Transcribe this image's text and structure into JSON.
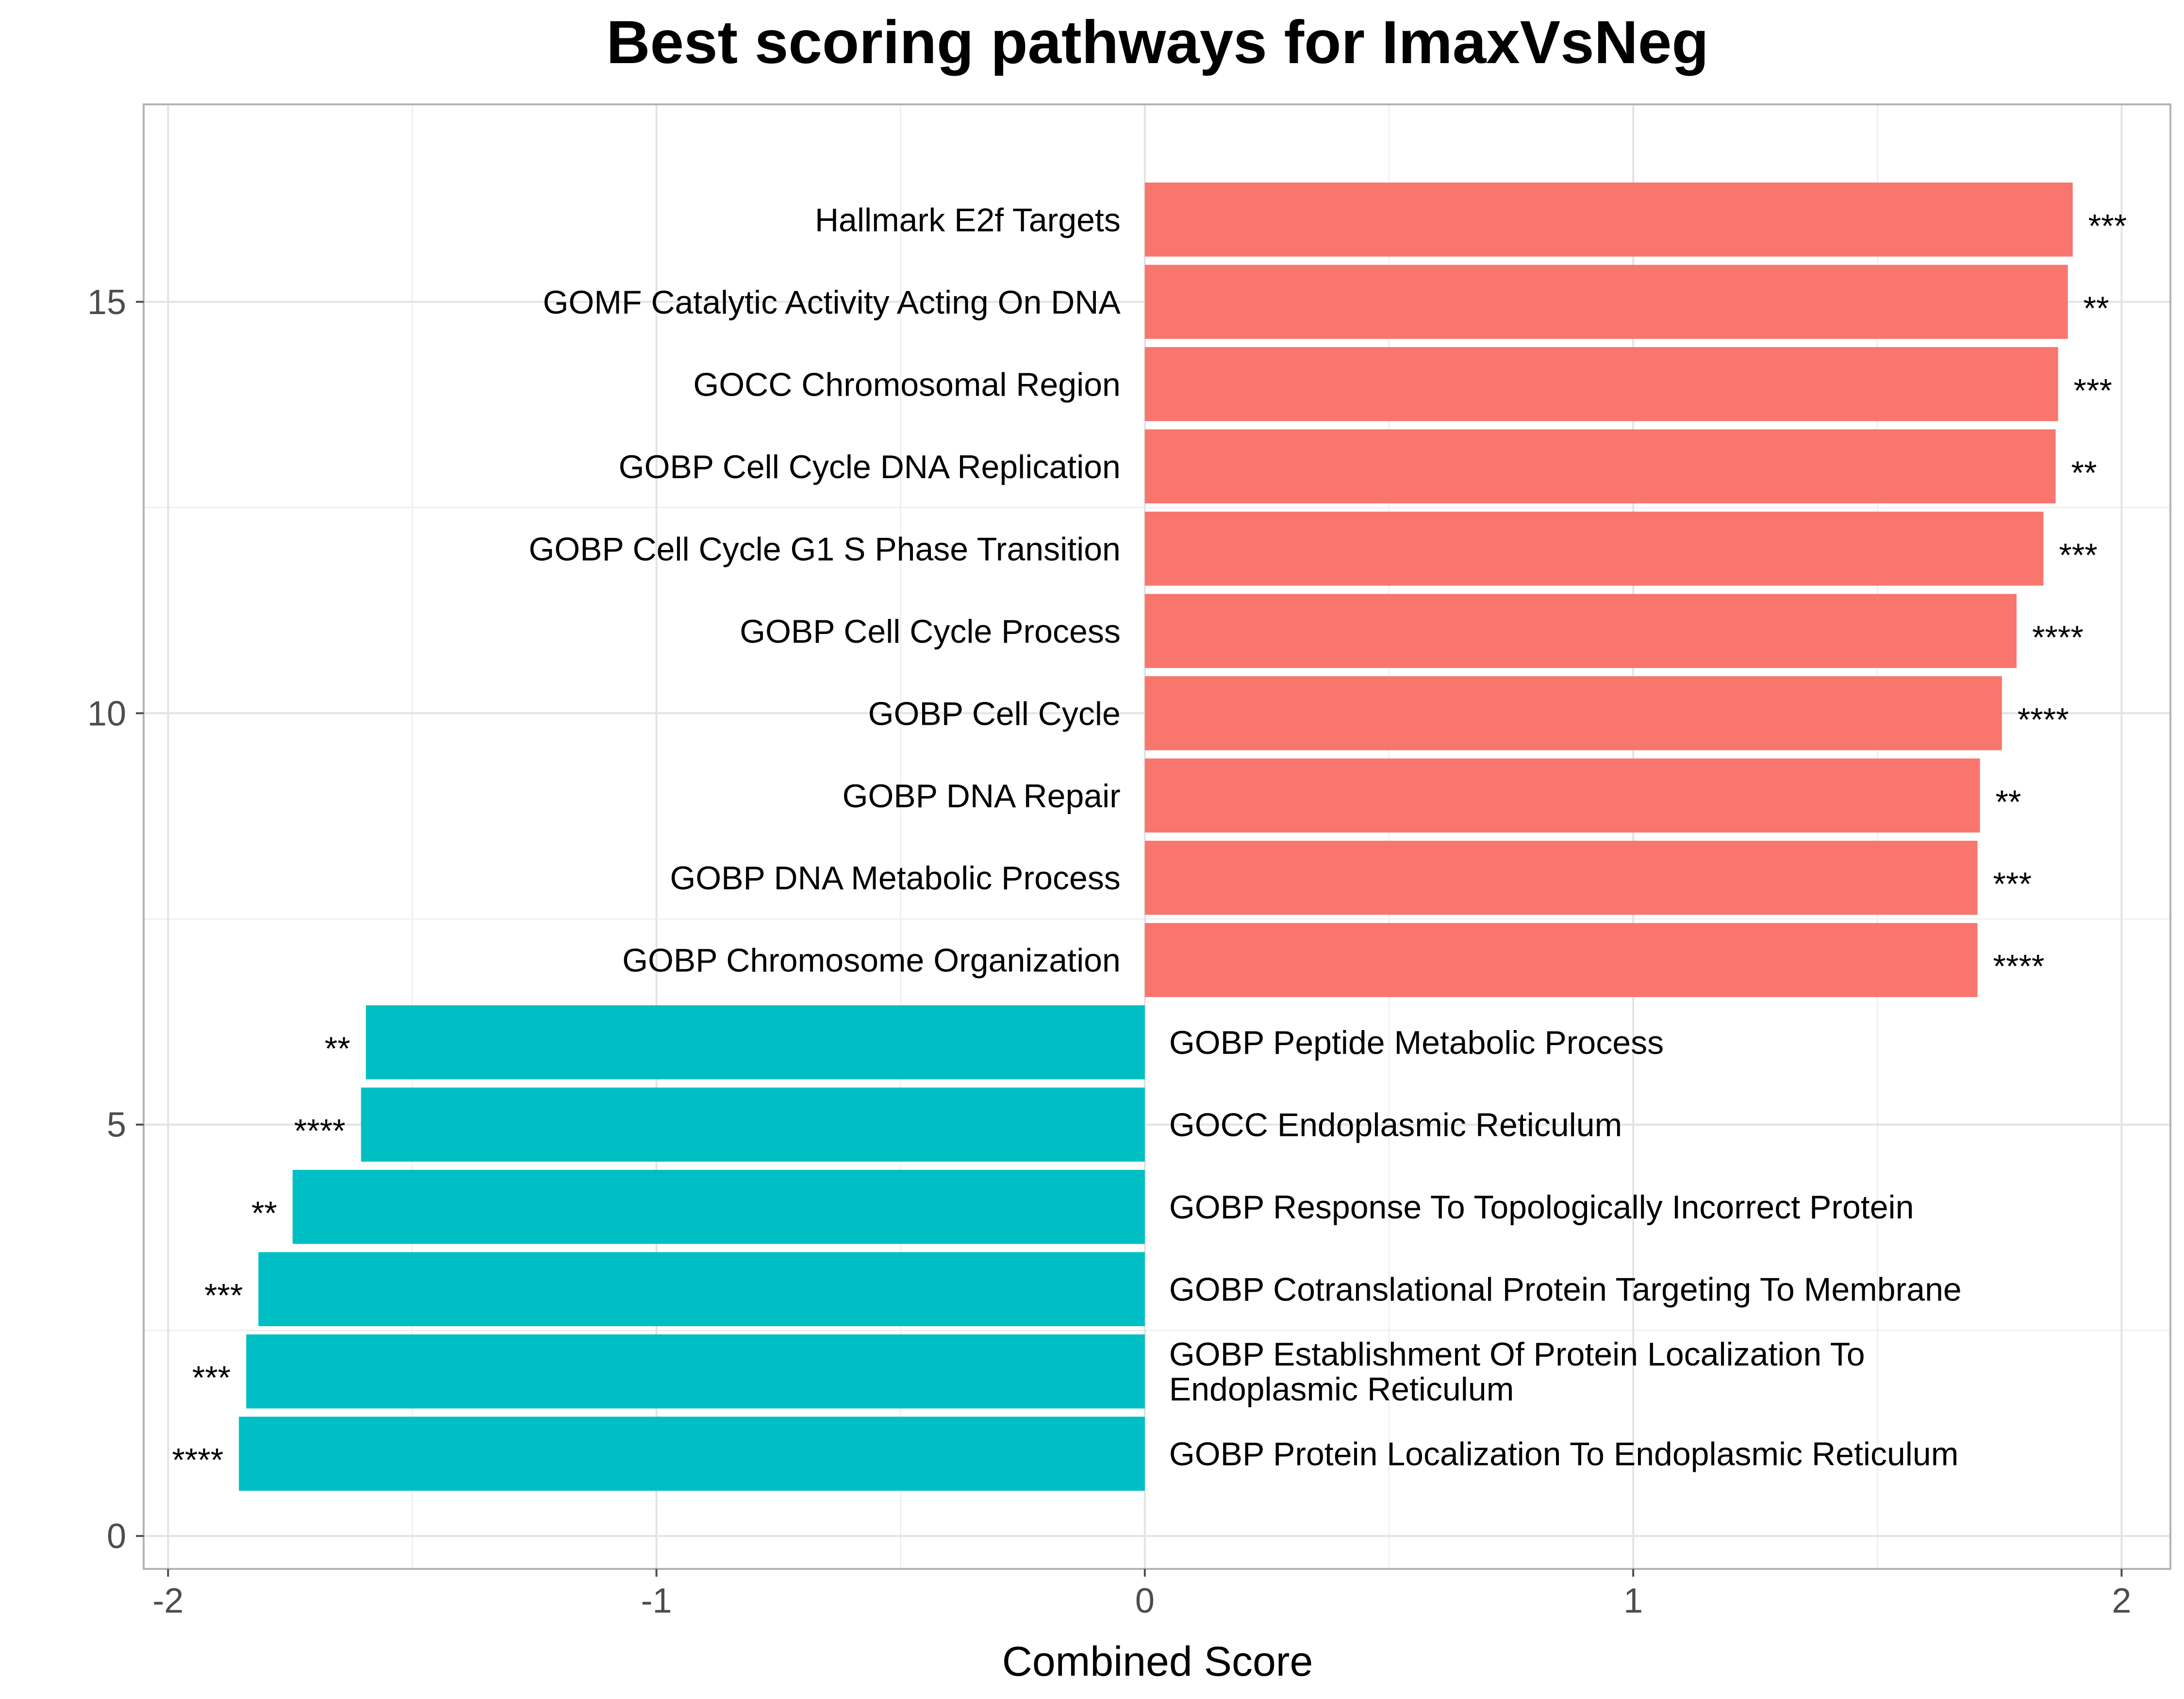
{
  "chart_data": {
    "type": "bar",
    "orientation": "horizontal",
    "title": "Best scoring pathways for ImaxVsNeg",
    "xlabel": "Combined Score",
    "ylabel": "",
    "xlim": [
      -2.05,
      2.1
    ],
    "ylim": [
      -0.4,
      17.4
    ],
    "x_ticks": [
      -2,
      -1,
      0,
      1,
      2
    ],
    "x_tick_labels": [
      "-2",
      "-1",
      "0",
      "1",
      "2"
    ],
    "y_ticks": [
      0,
      5,
      10,
      15
    ],
    "y_tick_labels": [
      "0",
      "5",
      "10",
      "15"
    ],
    "grid": true,
    "colors": {
      "positive": "#F8766D",
      "negative": "#00BFC4"
    },
    "bars": [
      {
        "y": 16,
        "value": 1.9,
        "label": "Hallmark E2f Targets",
        "stars": "***"
      },
      {
        "y": 15,
        "value": 1.89,
        "label": "GOMF Catalytic Activity Acting On DNA",
        "stars": "**"
      },
      {
        "y": 14,
        "value": 1.87,
        "label": "GOCC Chromosomal Region",
        "stars": "***"
      },
      {
        "y": 13,
        "value": 1.865,
        "label": "GOBP Cell Cycle DNA Replication",
        "stars": "**"
      },
      {
        "y": 12,
        "value": 1.84,
        "label": "GOBP Cell Cycle G1 S Phase Transition",
        "stars": "***"
      },
      {
        "y": 11,
        "value": 1.785,
        "label": "GOBP Cell Cycle Process",
        "stars": "****"
      },
      {
        "y": 10,
        "value": 1.755,
        "label": "GOBP Cell Cycle",
        "stars": "****"
      },
      {
        "y": 9,
        "value": 1.71,
        "label": "GOBP DNA Repair",
        "stars": "**"
      },
      {
        "y": 8,
        "value": 1.705,
        "label": "GOBP DNA Metabolic Process",
        "stars": "***"
      },
      {
        "y": 7,
        "value": 1.705,
        "label": "GOBP Chromosome Organization",
        "stars": "****"
      },
      {
        "y": 6,
        "value": -1.595,
        "label": "GOBP Peptide Metabolic Process",
        "stars": "**"
      },
      {
        "y": 5,
        "value": -1.605,
        "label": "GOCC Endoplasmic Reticulum",
        "stars": "****"
      },
      {
        "y": 4,
        "value": -1.745,
        "label": "GOBP Response To Topologically Incorrect Protein",
        "stars": "**"
      },
      {
        "y": 3,
        "value": -1.815,
        "label": "GOBP Cotranslational Protein Targeting To Membrane",
        "stars": "***"
      },
      {
        "y": 2,
        "value": -1.84,
        "label": "GOBP Establishment Of Protein Localization To Endoplasmic Reticulum",
        "label_lines": [
          "GOBP Establishment Of Protein Localization To",
          "Endoplasmic Reticulum"
        ],
        "stars": "***"
      },
      {
        "y": 1,
        "value": -1.855,
        "label": "GOBP Protein Localization To Endoplasmic Reticulum",
        "stars": "****"
      }
    ]
  }
}
